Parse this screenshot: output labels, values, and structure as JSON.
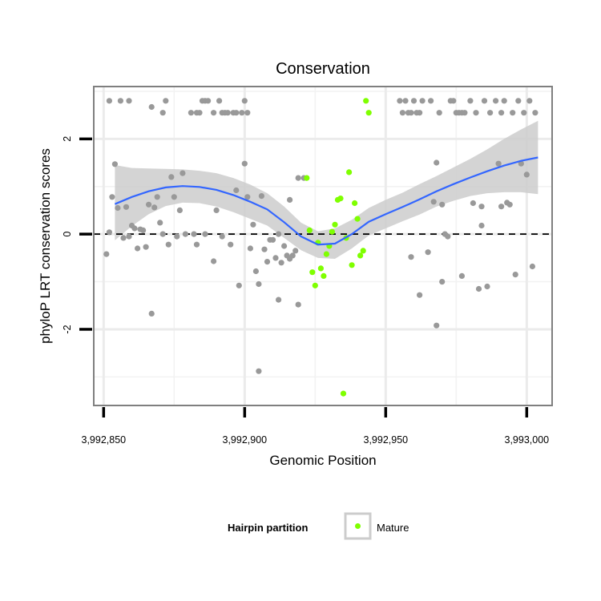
{
  "chart_data": {
    "type": "scatter",
    "title": "Conservation",
    "xlabel": "Genomic Position",
    "ylabel": "phyloP LRT conservation scores",
    "xlim": [
      3992846.5,
      3993009
    ],
    "ylim": [
      -3.6,
      3.1
    ],
    "x_ticks": [
      {
        "value": 3992850,
        "label": "3,992,850"
      },
      {
        "value": 3992900,
        "label": "3,992,900"
      },
      {
        "value": 3992950,
        "label": "3,992,950"
      },
      {
        "value": 3993000,
        "label": "3,993,000"
      }
    ],
    "y_ticks": [
      {
        "value": -2,
        "label": "-2"
      },
      {
        "value": 0,
        "label": "0"
      },
      {
        "value": 2,
        "label": "2"
      }
    ],
    "x_minor_grid": [
      3992875,
      3992925,
      3992975
    ],
    "y_minor_grid": [
      -3,
      -1,
      1,
      3
    ],
    "reference_line": {
      "y": 0,
      "style": "dashed"
    },
    "colors": {
      "other": "#999999",
      "mature": "#7fff00",
      "smooth": "#3366ff",
      "ribbon": "#cccccc",
      "panel_border": "#7f7f7f"
    },
    "legend": {
      "title": "Hairpin partition",
      "entries": [
        {
          "label": "Mature",
          "color": "#7fff00"
        }
      ],
      "position": "bottom"
    },
    "smooth": {
      "x": [
        3992854,
        3992860,
        3992866,
        3992872,
        3992878,
        3992884,
        3992890,
        3992896,
        3992902,
        3992908,
        3992914,
        3992920,
        3992926,
        3992932,
        3992938,
        3992944,
        3992950,
        3992956,
        3992962,
        3992968,
        3992974,
        3992980,
        3992986,
        3992992,
        3992998,
        3993004
      ],
      "y": [
        0.63,
        0.78,
        0.9,
        0.98,
        1.01,
        0.99,
        0.93,
        0.82,
        0.68,
        0.52,
        0.25,
        -0.05,
        -0.22,
        -0.2,
        0.0,
        0.26,
        0.42,
        0.57,
        0.73,
        0.9,
        1.05,
        1.19,
        1.32,
        1.44,
        1.54,
        1.61
      ],
      "upper": [
        1.45,
        1.39,
        1.38,
        1.37,
        1.36,
        1.33,
        1.28,
        1.18,
        1.04,
        0.86,
        0.58,
        0.24,
        0.06,
        0.12,
        0.3,
        0.55,
        0.72,
        0.87,
        1.05,
        1.22,
        1.4,
        1.58,
        1.78,
        2.0,
        2.2,
        2.38
      ],
      "lower": [
        -0.13,
        0.17,
        0.42,
        0.59,
        0.66,
        0.65,
        0.58,
        0.46,
        0.32,
        0.18,
        -0.08,
        -0.34,
        -0.5,
        -0.52,
        -0.3,
        -0.03,
        0.12,
        0.27,
        0.41,
        0.58,
        0.7,
        0.8,
        0.86,
        0.88,
        0.88,
        0.84
      ]
    },
    "series": [
      {
        "name": "Other",
        "color": "#999999",
        "points": [
          [
            3992851,
            -0.42
          ],
          [
            3992852,
            0.04
          ],
          [
            3992852,
            2.8
          ],
          [
            3992853,
            0.78
          ],
          [
            3992854,
            1.47
          ],
          [
            3992855,
            0.55
          ],
          [
            3992856,
            2.8
          ],
          [
            3992857,
            -0.08
          ],
          [
            3992858,
            0.57
          ],
          [
            3992859,
            -0.05
          ],
          [
            3992859,
            2.8
          ],
          [
            3992860,
            0.18
          ],
          [
            3992861,
            0.12
          ],
          [
            3992862,
            -0.3
          ],
          [
            3992863,
            0.1
          ],
          [
            3992864,
            0.08
          ],
          [
            3992865,
            -0.27
          ],
          [
            3992866,
            0.62
          ],
          [
            3992867,
            2.67
          ],
          [
            3992867,
            -1.67
          ],
          [
            3992868,
            0.56
          ],
          [
            3992869,
            0.78
          ],
          [
            3992870,
            0.24
          ],
          [
            3992871,
            2.55
          ],
          [
            3992871,
            0.0
          ],
          [
            3992872,
            2.8
          ],
          [
            3992873,
            -0.22
          ],
          [
            3992874,
            1.2
          ],
          [
            3992875,
            0.78
          ],
          [
            3992876,
            -0.05
          ],
          [
            3992877,
            0.5
          ],
          [
            3992878,
            1.28
          ],
          [
            3992879,
            0.0
          ],
          [
            3992881,
            2.55
          ],
          [
            3992882,
            0.0
          ],
          [
            3992883,
            2.55
          ],
          [
            3992883,
            -0.22
          ],
          [
            3992884,
            2.55
          ],
          [
            3992885,
            2.8
          ],
          [
            3992886,
            0.0
          ],
          [
            3992886,
            2.8
          ],
          [
            3992887,
            2.8
          ],
          [
            3992889,
            2.55
          ],
          [
            3992889,
            -0.57
          ],
          [
            3992890,
            0.5
          ],
          [
            3992891,
            2.8
          ],
          [
            3992892,
            -0.05
          ],
          [
            3992892,
            2.55
          ],
          [
            3992893,
            2.55
          ],
          [
            3992894,
            2.55
          ],
          [
            3992895,
            -0.22
          ],
          [
            3992896,
            2.55
          ],
          [
            3992897,
            0.92
          ],
          [
            3992897,
            2.55
          ],
          [
            3992898,
            -1.08
          ],
          [
            3992899,
            2.55
          ],
          [
            3992900,
            2.8
          ],
          [
            3992900,
            1.48
          ],
          [
            3992901,
            0.78
          ],
          [
            3992901,
            2.55
          ],
          [
            3992902,
            -0.3
          ],
          [
            3992903,
            0.2
          ],
          [
            3992904,
            -0.78
          ],
          [
            3992905,
            -2.88
          ],
          [
            3992905,
            -1.05
          ],
          [
            3992906,
            0.8
          ],
          [
            3992907,
            -0.32
          ],
          [
            3992908,
            -0.58
          ],
          [
            3992909,
            -0.12
          ],
          [
            3992910,
            -0.12
          ],
          [
            3992911,
            -0.5
          ],
          [
            3992912,
            -1.38
          ],
          [
            3992912,
            0.0
          ],
          [
            3992913,
            -0.6
          ],
          [
            3992914,
            -0.25
          ],
          [
            3992915,
            -0.45
          ],
          [
            3992916,
            0.72
          ],
          [
            3992916,
            -0.52
          ],
          [
            3992917,
            -0.45
          ],
          [
            3992918,
            -0.35
          ],
          [
            3992919,
            -1.48
          ],
          [
            3992919,
            1.18
          ],
          [
            3992921,
            1.18
          ]
        ]
      },
      {
        "name": "Other",
        "color": "#999999",
        "points": [
          [
            3992955,
            2.8
          ],
          [
            3992956,
            2.55
          ],
          [
            3992957,
            2.8
          ],
          [
            3992958,
            2.55
          ],
          [
            3992959,
            2.55
          ],
          [
            3992959,
            -0.48
          ],
          [
            3992960,
            2.8
          ],
          [
            3992961,
            2.55
          ],
          [
            3992962,
            2.55
          ],
          [
            3992962,
            -1.28
          ],
          [
            3992963,
            2.8
          ],
          [
            3992965,
            -0.38
          ],
          [
            3992966,
            2.8
          ],
          [
            3992967,
            0.68
          ],
          [
            3992968,
            -1.92
          ],
          [
            3992968,
            1.5
          ],
          [
            3992969,
            2.55
          ],
          [
            3992970,
            0.62
          ],
          [
            3992970,
            -1.0
          ],
          [
            3992971,
            0.0
          ],
          [
            3992972,
            -0.05
          ],
          [
            3992973,
            2.8
          ],
          [
            3992974,
            2.8
          ],
          [
            3992975,
            2.55
          ],
          [
            3992976,
            2.55
          ],
          [
            3992977,
            2.55
          ],
          [
            3992977,
            -0.88
          ],
          [
            3992978,
            2.55
          ],
          [
            3992980,
            2.8
          ],
          [
            3992981,
            0.65
          ],
          [
            3992982,
            2.55
          ],
          [
            3992983,
            -1.15
          ],
          [
            3992984,
            0.58
          ],
          [
            3992984,
            0.18
          ],
          [
            3992985,
            2.8
          ],
          [
            3992986,
            -1.1
          ],
          [
            3992987,
            2.55
          ],
          [
            3992989,
            2.8
          ],
          [
            3992990,
            1.48
          ],
          [
            3992991,
            2.55
          ],
          [
            3992991,
            0.58
          ],
          [
            3992992,
            2.8
          ],
          [
            3992993,
            0.66
          ],
          [
            3992994,
            0.62
          ],
          [
            3992995,
            2.55
          ],
          [
            3992996,
            -0.85
          ],
          [
            3992997,
            2.8
          ],
          [
            3992998,
            1.48
          ],
          [
            3992999,
            2.55
          ],
          [
            3993000,
            1.25
          ],
          [
            3993001,
            2.8
          ],
          [
            3993002,
            -0.68
          ],
          [
            3993003,
            2.55
          ]
        ]
      },
      {
        "name": "Mature",
        "color": "#7fff00",
        "points": [
          [
            3992922,
            1.18
          ],
          [
            3992923,
            0.08
          ],
          [
            3992924,
            -0.8
          ],
          [
            3992925,
            -1.08
          ],
          [
            3992926,
            -0.18
          ],
          [
            3992927,
            -0.72
          ],
          [
            3992928,
            -0.88
          ],
          [
            3992929,
            -0.42
          ],
          [
            3992930,
            -0.25
          ],
          [
            3992931,
            0.05
          ],
          [
            3992932,
            0.2
          ],
          [
            3992933,
            0.72
          ],
          [
            3992934,
            0.75
          ],
          [
            3992935,
            -3.35
          ],
          [
            3992936,
            -0.08
          ],
          [
            3992937,
            1.3
          ],
          [
            3992938,
            -0.65
          ],
          [
            3992939,
            0.65
          ],
          [
            3992940,
            0.32
          ],
          [
            3992941,
            -0.45
          ],
          [
            3992942,
            -0.35
          ],
          [
            3992943,
            2.8
          ],
          [
            3992944,
            2.55
          ]
        ]
      }
    ]
  }
}
